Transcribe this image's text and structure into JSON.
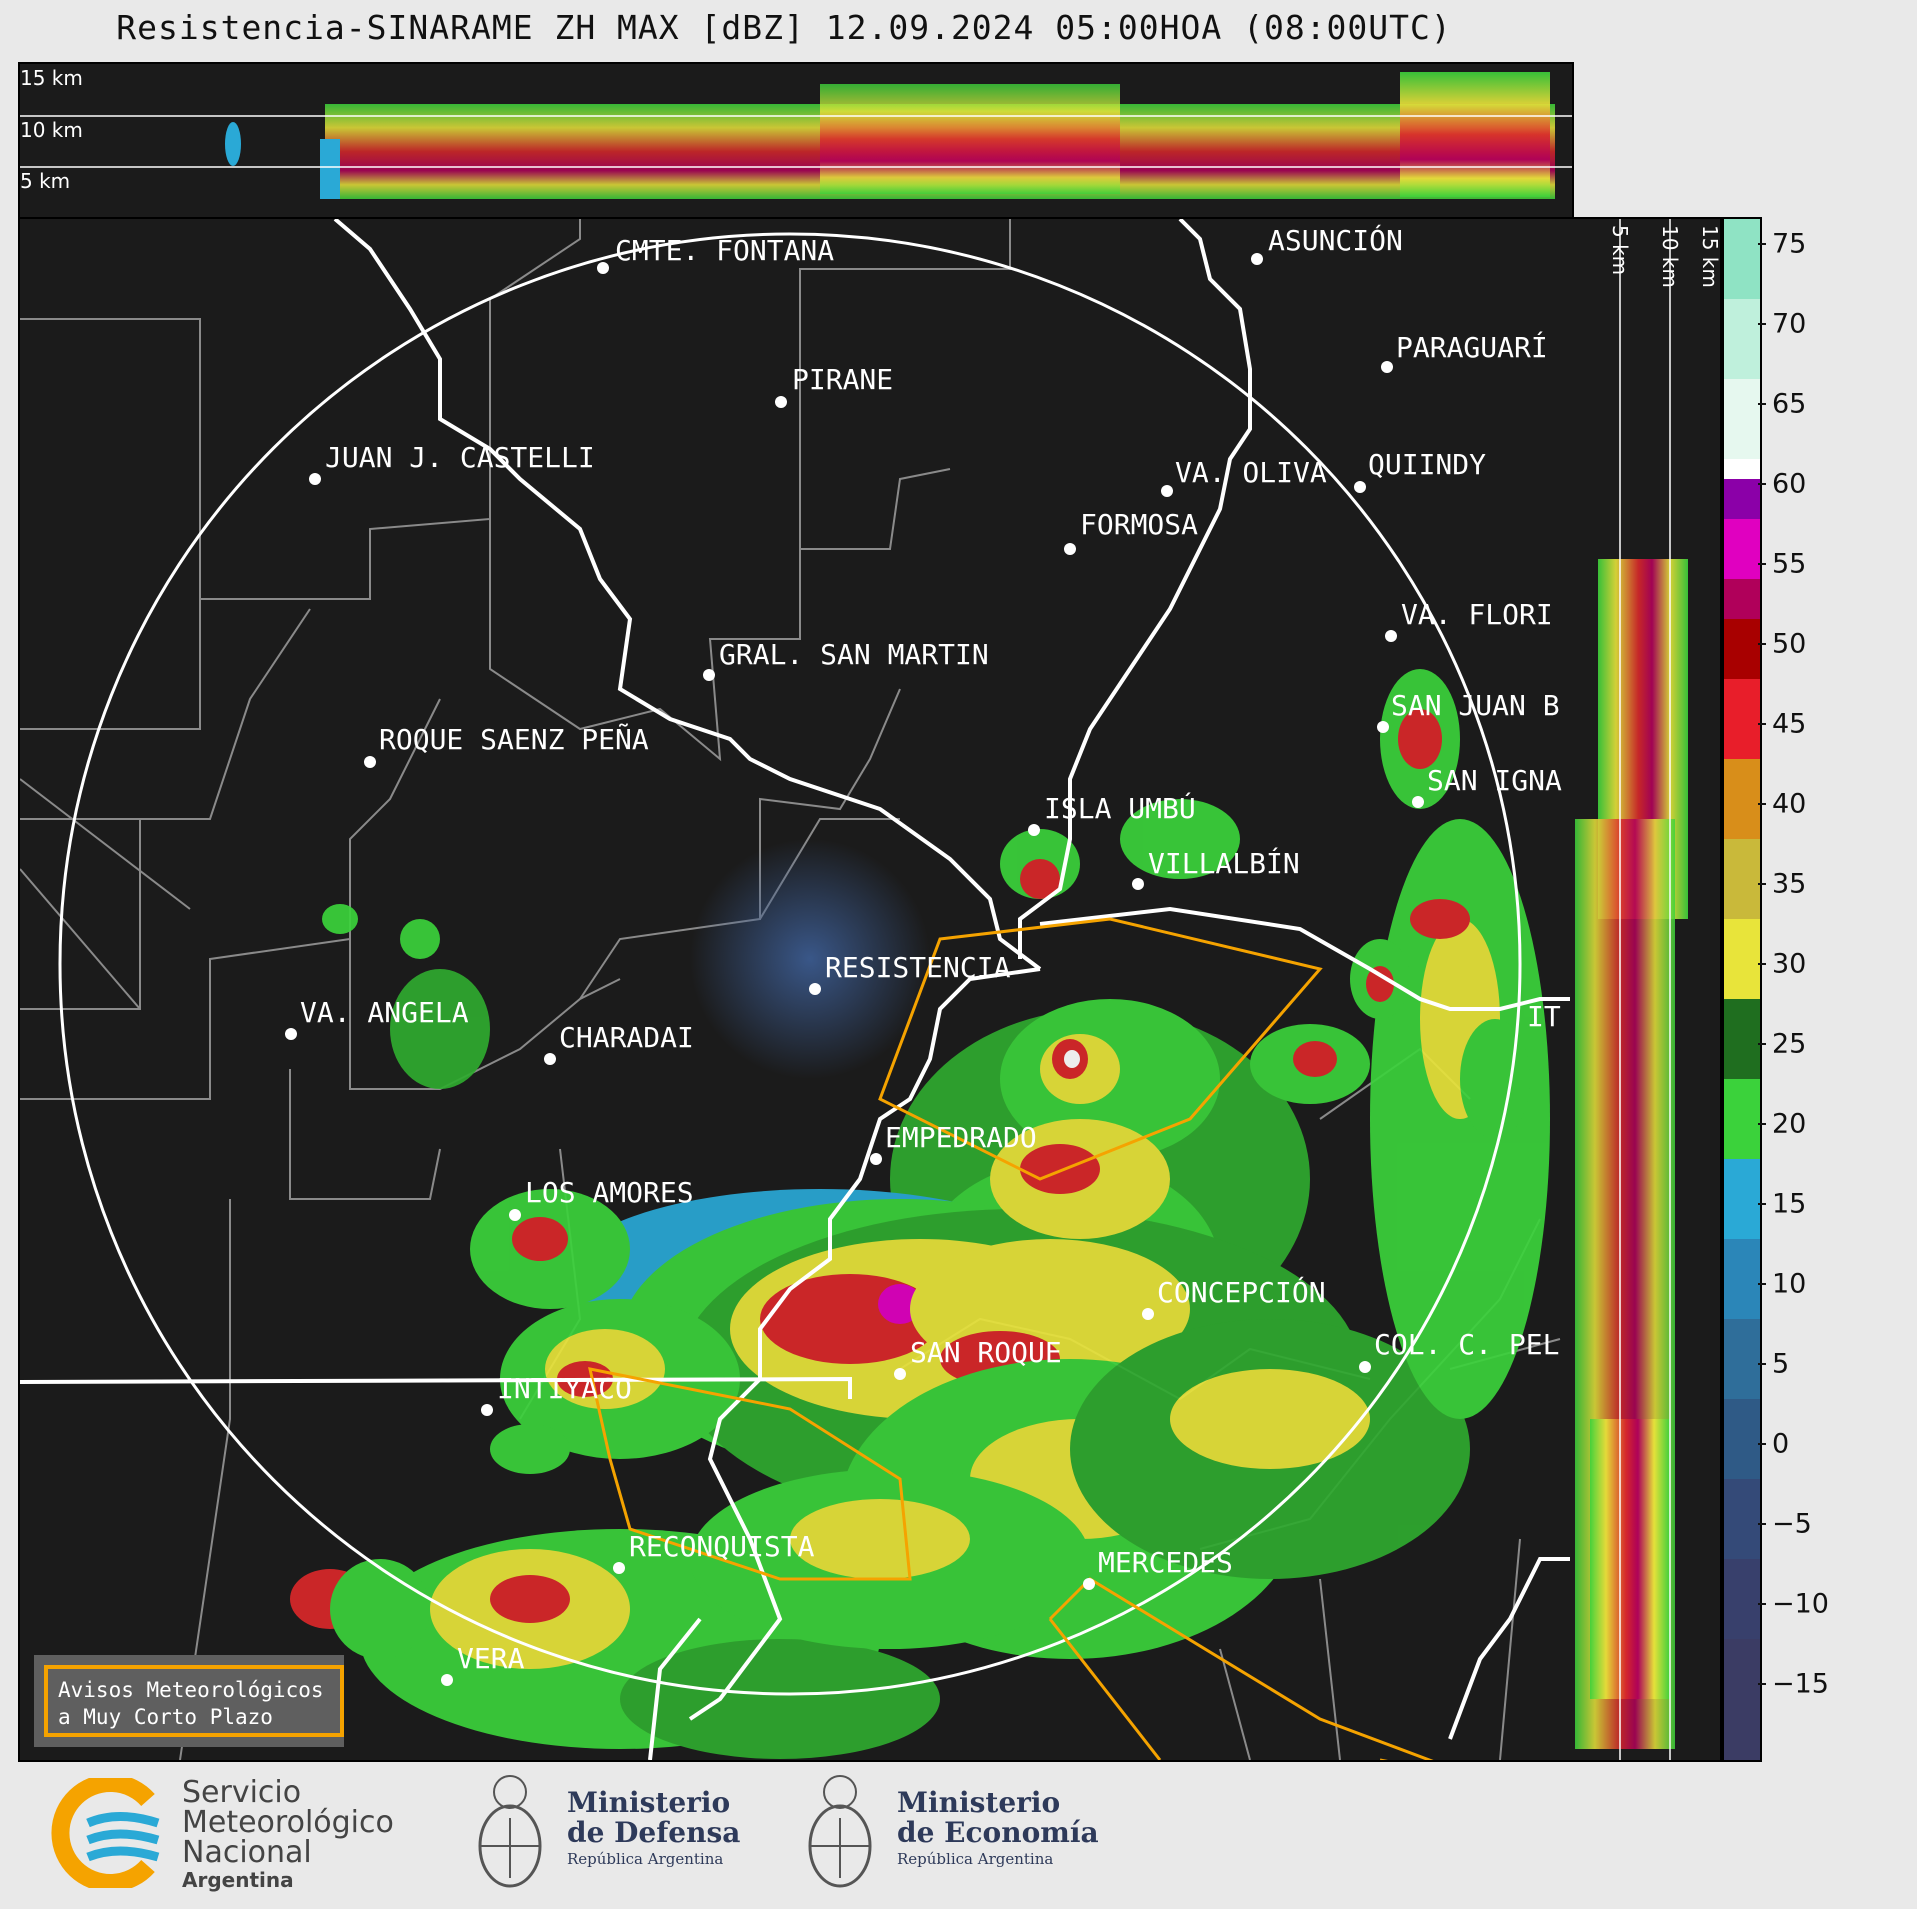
{
  "title": "Resistencia-SINARAME ZH MAX [dBZ] 12.09.2024 05:00HOA (08:00UTC)",
  "top_section": {
    "heights": [
      "15 km",
      "10 km",
      "5 km"
    ]
  },
  "right_section": {
    "heights": [
      "5 km",
      "10 km",
      "15 km"
    ]
  },
  "colorbar": {
    "unit": "dBZ",
    "ticks": [
      "75",
      "70",
      "65",
      "60",
      "55",
      "50",
      "45",
      "40",
      "35",
      "30",
      "25",
      "20",
      "15",
      "10",
      "5",
      "0",
      "−5",
      "−10",
      "−15"
    ]
  },
  "cities": [
    {
      "name": "CMTE. FONTANA"
    },
    {
      "name": "ASUNCIÓN"
    },
    {
      "name": "PIRANE"
    },
    {
      "name": "PARAGUARÍ"
    },
    {
      "name": "JUAN J. CASTELLI"
    },
    {
      "name": "VA. OLIVA"
    },
    {
      "name": "QUIINDY"
    },
    {
      "name": "FORMOSA"
    },
    {
      "name": "VA. FLORI"
    },
    {
      "name": "GRAL. SAN MARTIN"
    },
    {
      "name": "SAN JUAN B"
    },
    {
      "name": "ROQUE SAENZ PEÑA"
    },
    {
      "name": "SAN IGNA"
    },
    {
      "name": "ISLA UMBÚ"
    },
    {
      "name": "VILLALBÍN"
    },
    {
      "name": "RESISTENCIA"
    },
    {
      "name": "VA. ANGELA"
    },
    {
      "name": "CHARADAI"
    },
    {
      "name": "IT"
    },
    {
      "name": "EMPEDRADO"
    },
    {
      "name": "LOS AMORES"
    },
    {
      "name": "CONCEPCIÓN"
    },
    {
      "name": "SAN ROQUE"
    },
    {
      "name": "COL. C. PEL"
    },
    {
      "name": "INTIYACO"
    },
    {
      "name": "RECONQUISTA"
    },
    {
      "name": "MERCEDES"
    },
    {
      "name": "VERA"
    }
  ],
  "warning_box": {
    "line1": "Avisos Meteorológicos",
    "line2": "a Muy Corto Plazo"
  },
  "logos": {
    "smn": {
      "line1": "Servicio",
      "line2": "Meteorológico",
      "line3": "Nacional",
      "line4": "Argentina"
    },
    "defensa": {
      "line1": "Ministerio",
      "line2": "de Defensa",
      "line3": "República Argentina"
    },
    "economia": {
      "line1": "Ministerio",
      "line2": "de Economía",
      "line3": "República Argentina"
    }
  },
  "colors": {
    "range_ring": "#ffffff",
    "warning_polygon": "#f5a300",
    "background": "#1b1b1b"
  }
}
